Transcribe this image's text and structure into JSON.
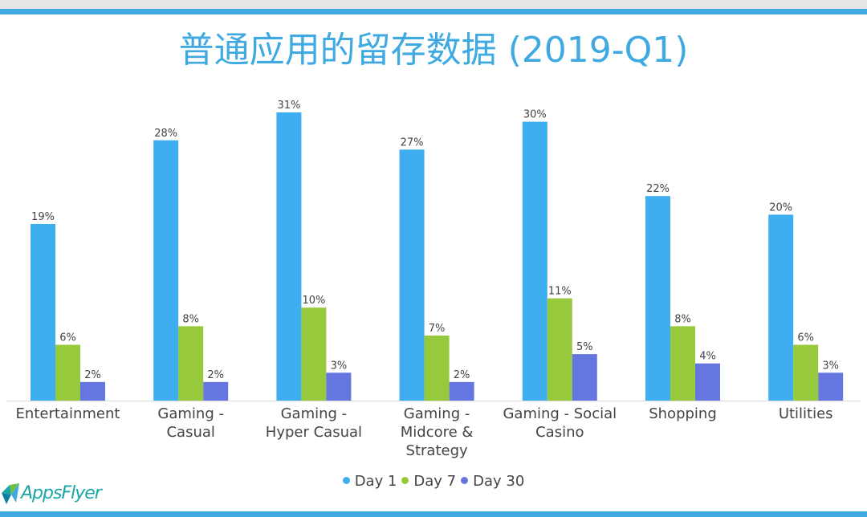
{
  "title": "普通应用的留存数据 (2019-Q1)",
  "logo_text": "AppsFlyer",
  "colors": {
    "day1": "#3faef0",
    "day7": "#97c93c",
    "day30": "#6676e0",
    "accent": "#3fa9e2"
  },
  "chart_data": {
    "type": "bar",
    "title": "普通应用的留存数据 (2019-Q1)",
    "categories": [
      [
        "Entertainment"
      ],
      [
        "Gaming -",
        "Casual"
      ],
      [
        "Gaming -",
        "Hyper Casual"
      ],
      [
        "Gaming -",
        "Midcore &",
        "Strategy"
      ],
      [
        "Gaming - Social",
        "Casino"
      ],
      [
        "Shopping"
      ],
      [
        "Utilities"
      ]
    ],
    "series": [
      {
        "name": "Day 1",
        "values": [
          19,
          28,
          31,
          27,
          30,
          22,
          20
        ]
      },
      {
        "name": "Day 7",
        "values": [
          6,
          8,
          10,
          7,
          11,
          8,
          6
        ]
      },
      {
        "name": "Day 30",
        "values": [
          2,
          2,
          3,
          2,
          5,
          4,
          3
        ]
      }
    ],
    "ylim": [
      0,
      31
    ],
    "value_suffix": "%",
    "grid": false,
    "legend_position": "bottom"
  }
}
